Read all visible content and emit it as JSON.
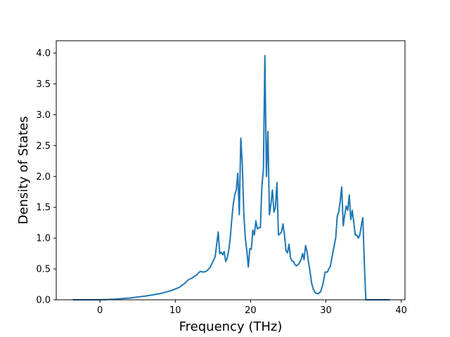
{
  "chart_data": {
    "type": "line",
    "xlabel": "Frequency (THz)",
    "ylabel": "Density of States",
    "xlim": [
      -5.8,
      40.5
    ],
    "ylim": [
      0,
      4.2
    ],
    "xticks": [
      0,
      10,
      20,
      30,
      40
    ],
    "yticks": [
      0.0,
      0.5,
      1.0,
      1.5,
      2.0,
      2.5,
      3.0,
      3.5,
      4.0
    ],
    "xtick_labels": [
      "0",
      "10",
      "20",
      "30",
      "40"
    ],
    "ytick_labels": [
      "0.0",
      "0.5",
      "1.0",
      "1.5",
      "2.0",
      "2.5",
      "3.0",
      "3.5",
      "4.0"
    ],
    "grid": false,
    "series": [
      {
        "color": "#1f77b4",
        "points": [
          [
            -3.6,
            0.0
          ],
          [
            0.0,
            0.0
          ],
          [
            2.0,
            0.01
          ],
          [
            4.0,
            0.03
          ],
          [
            6.0,
            0.06
          ],
          [
            8.0,
            0.1
          ],
          [
            9.5,
            0.15
          ],
          [
            10.5,
            0.2
          ],
          [
            11.2,
            0.26
          ],
          [
            11.8,
            0.33
          ],
          [
            12.2,
            0.35
          ],
          [
            12.8,
            0.4
          ],
          [
            13.3,
            0.46
          ],
          [
            13.7,
            0.45
          ],
          [
            14.1,
            0.46
          ],
          [
            14.6,
            0.52
          ],
          [
            15.0,
            0.62
          ],
          [
            15.3,
            0.7
          ],
          [
            15.5,
            0.9
          ],
          [
            15.7,
            1.1
          ],
          [
            15.9,
            0.75
          ],
          [
            16.1,
            0.77
          ],
          [
            16.3,
            0.73
          ],
          [
            16.5,
            0.78
          ],
          [
            16.7,
            0.62
          ],
          [
            16.9,
            0.68
          ],
          [
            17.1,
            0.8
          ],
          [
            17.3,
            1.0
          ],
          [
            17.5,
            1.3
          ],
          [
            17.7,
            1.55
          ],
          [
            17.9,
            1.7
          ],
          [
            18.1,
            1.78
          ],
          [
            18.3,
            2.05
          ],
          [
            18.5,
            1.38
          ],
          [
            18.7,
            2.62
          ],
          [
            18.9,
            2.2
          ],
          [
            19.1,
            1.4
          ],
          [
            19.3,
            1.0
          ],
          [
            19.5,
            0.8
          ],
          [
            19.7,
            0.53
          ],
          [
            19.9,
            0.83
          ],
          [
            20.1,
            0.82
          ],
          [
            20.3,
            1.13
          ],
          [
            20.5,
            1.05
          ],
          [
            20.7,
            1.28
          ],
          [
            20.9,
            1.15
          ],
          [
            21.1,
            1.17
          ],
          [
            21.3,
            1.17
          ],
          [
            21.5,
            1.85
          ],
          [
            21.7,
            2.1
          ],
          [
            21.9,
            3.96
          ],
          [
            22.1,
            2.0
          ],
          [
            22.3,
            2.73
          ],
          [
            22.5,
            1.38
          ],
          [
            22.7,
            1.55
          ],
          [
            22.9,
            1.78
          ],
          [
            23.1,
            1.42
          ],
          [
            23.3,
            1.5
          ],
          [
            23.5,
            1.9
          ],
          [
            23.7,
            1.05
          ],
          [
            23.9,
            1.07
          ],
          [
            24.1,
            1.1
          ],
          [
            24.3,
            1.23
          ],
          [
            24.5,
            1.05
          ],
          [
            24.7,
            0.8
          ],
          [
            24.9,
            0.76
          ],
          [
            25.1,
            0.9
          ],
          [
            25.3,
            0.68
          ],
          [
            25.5,
            0.63
          ],
          [
            25.7,
            0.62
          ],
          [
            25.9,
            0.57
          ],
          [
            26.1,
            0.55
          ],
          [
            26.4,
            0.58
          ],
          [
            26.7,
            0.65
          ],
          [
            26.9,
            0.75
          ],
          [
            27.1,
            0.65
          ],
          [
            27.3,
            0.88
          ],
          [
            27.5,
            0.78
          ],
          [
            27.7,
            0.6
          ],
          [
            27.9,
            0.45
          ],
          [
            28.1,
            0.27
          ],
          [
            28.3,
            0.18
          ],
          [
            28.6,
            0.11
          ],
          [
            29.0,
            0.1
          ],
          [
            29.3,
            0.13
          ],
          [
            29.6,
            0.25
          ],
          [
            29.9,
            0.45
          ],
          [
            30.2,
            0.45
          ],
          [
            30.6,
            0.55
          ],
          [
            30.9,
            0.75
          ],
          [
            31.1,
            0.88
          ],
          [
            31.3,
            1.0
          ],
          [
            31.5,
            1.35
          ],
          [
            31.7,
            1.42
          ],
          [
            31.9,
            1.6
          ],
          [
            32.1,
            1.83
          ],
          [
            32.3,
            1.2
          ],
          [
            32.5,
            1.38
          ],
          [
            32.7,
            1.52
          ],
          [
            32.9,
            1.45
          ],
          [
            33.1,
            1.7
          ],
          [
            33.3,
            1.3
          ],
          [
            33.5,
            1.45
          ],
          [
            33.7,
            1.25
          ],
          [
            33.9,
            1.05
          ],
          [
            34.1,
            1.05
          ],
          [
            34.3,
            1.0
          ],
          [
            34.5,
            1.05
          ],
          [
            34.7,
            1.2
          ],
          [
            34.9,
            1.33
          ],
          [
            35.1,
            0.6
          ],
          [
            35.3,
            0.0
          ],
          [
            36.5,
            0.0
          ],
          [
            38.5,
            0.0
          ]
        ]
      }
    ]
  }
}
